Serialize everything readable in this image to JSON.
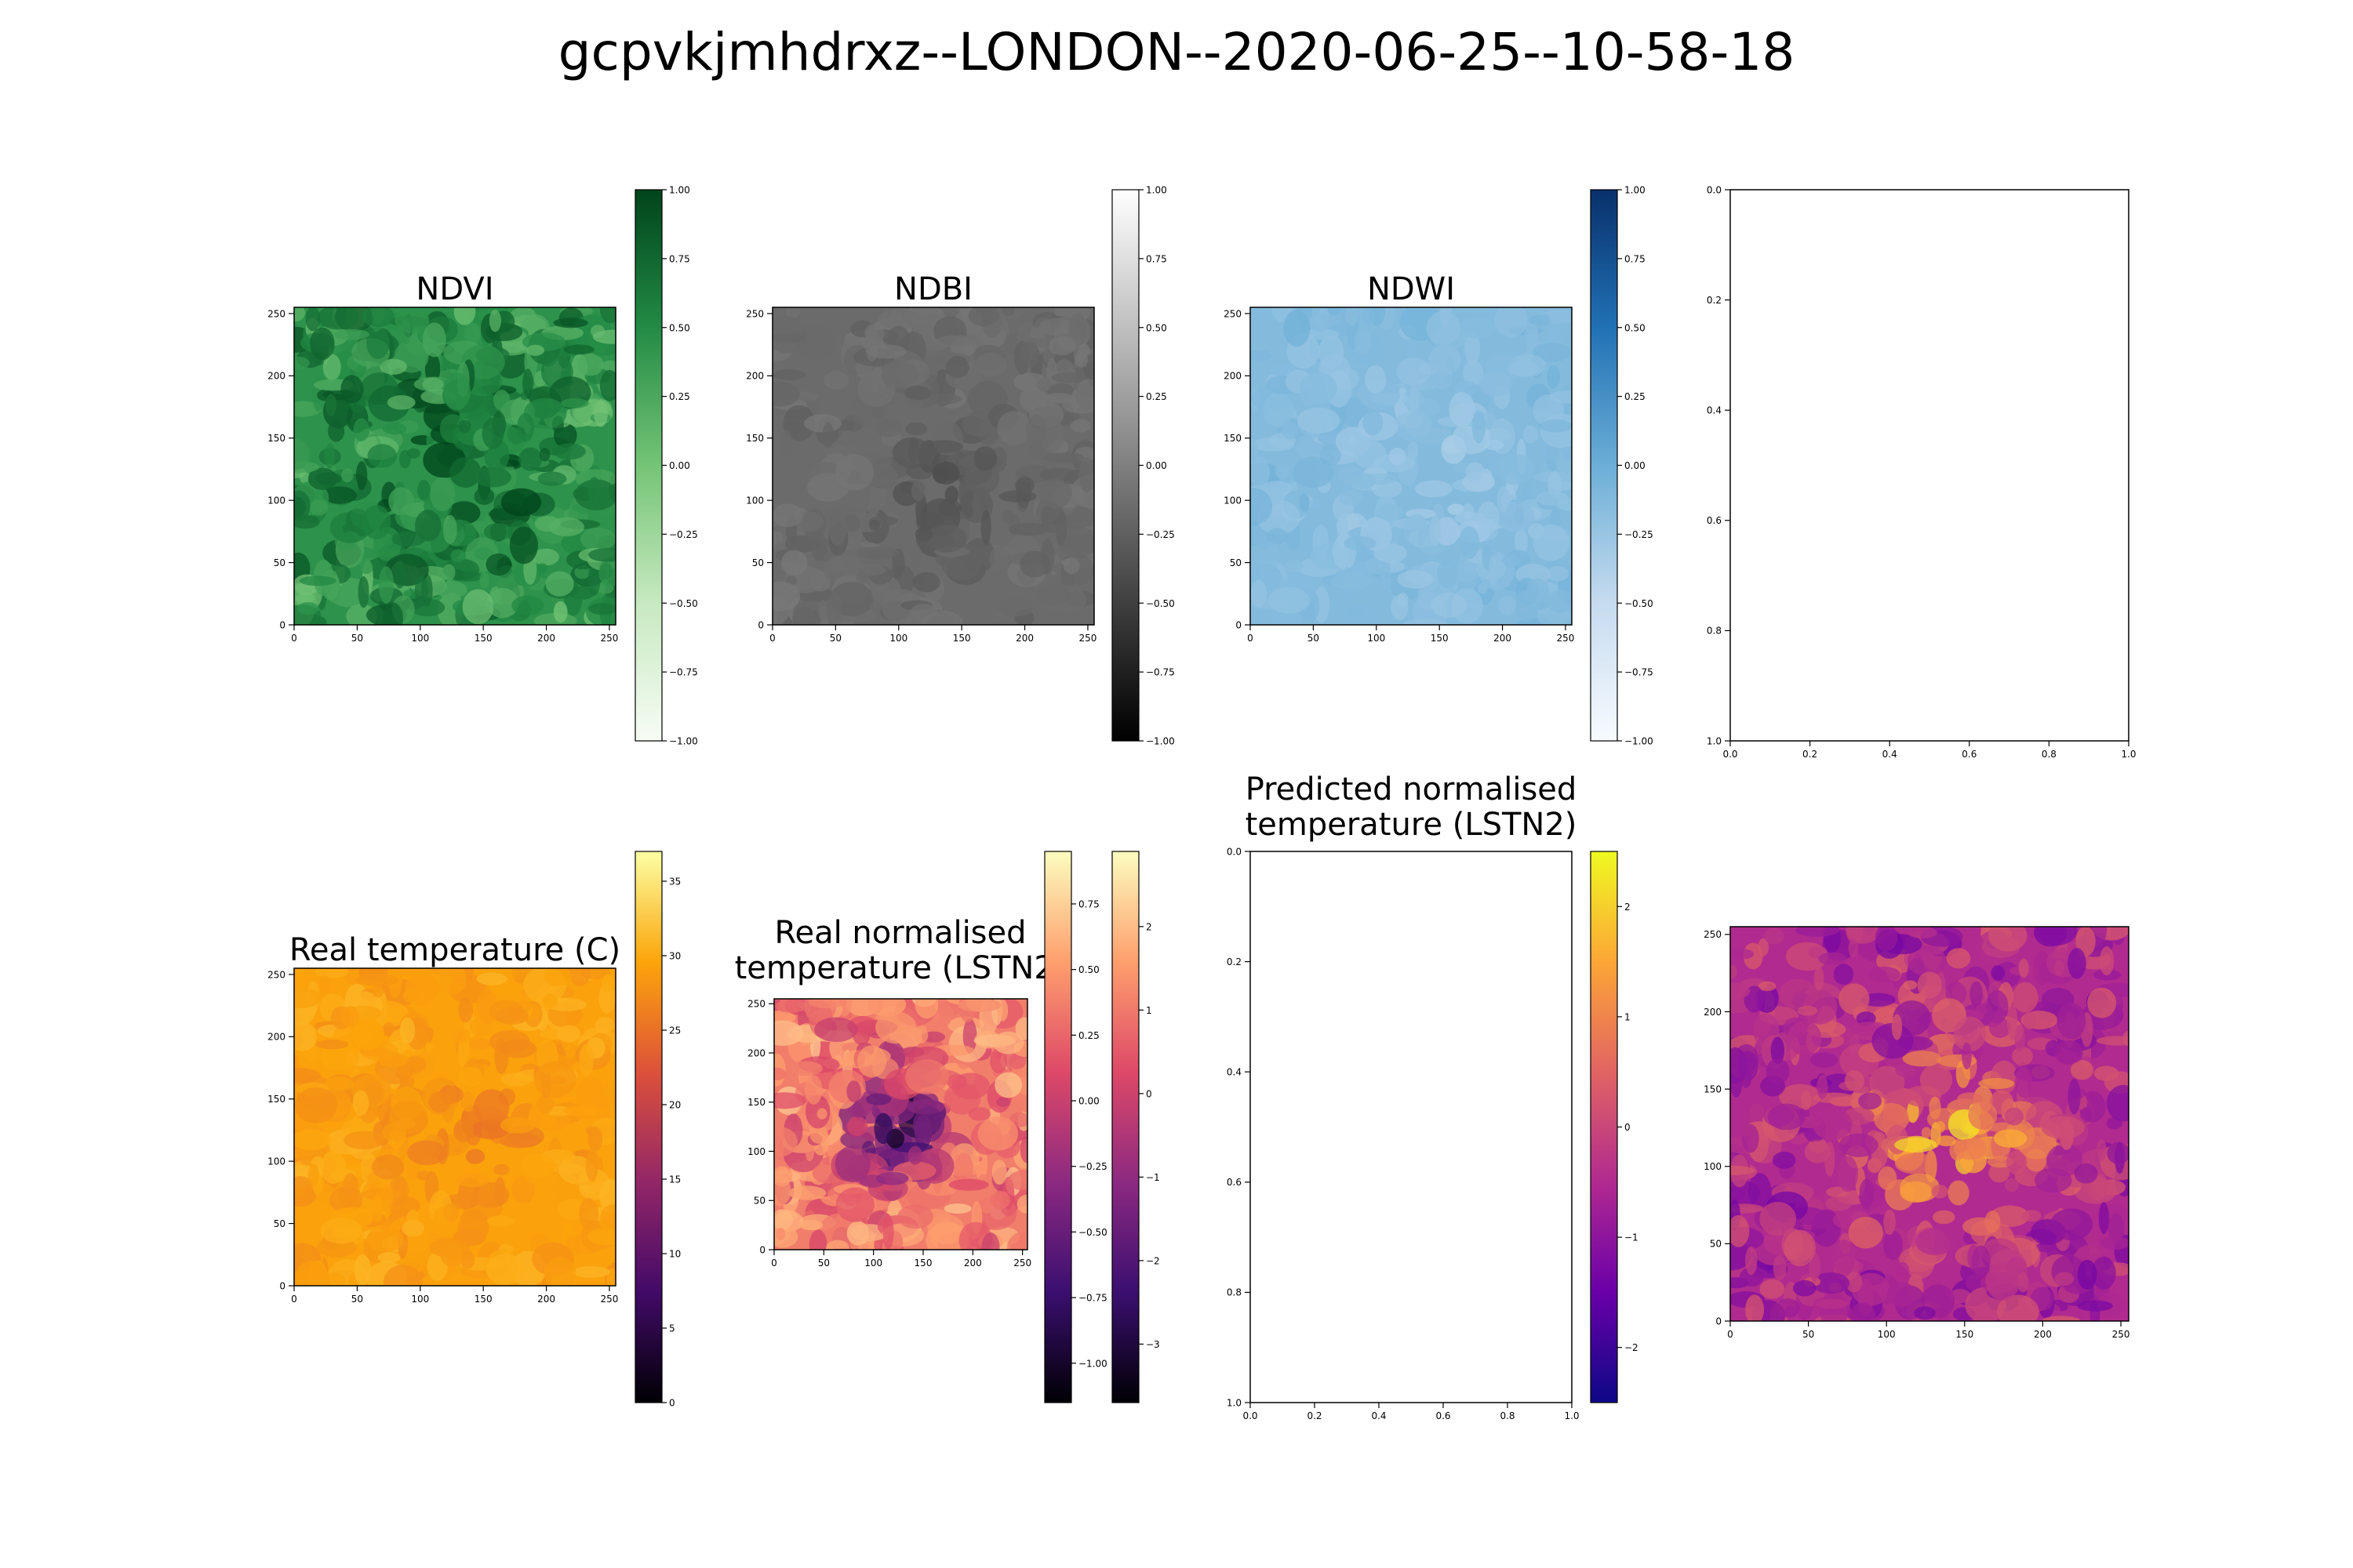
{
  "figure": {
    "suptitle": "gcpvkjmhdrxz--LONDON--2020-06-25--10-58-18"
  },
  "colors": {
    "ndvi": [
      "#f7fcf5",
      "#c7e9c0",
      "#74c476",
      "#238b45",
      "#00441b"
    ],
    "ndbi": [
      "#000000",
      "#ffffff"
    ],
    "ndwi": [
      "#f7fbff",
      "#c6dbef",
      "#6baed6",
      "#2171b5",
      "#08306b"
    ],
    "inferno_like": [
      "#000004",
      "#420a68",
      "#932667",
      "#dd513a",
      "#fca50a",
      "#fcffa4"
    ],
    "magma_like": [
      "#000004",
      "#3b0f70",
      "#8c2981",
      "#de4968",
      "#fe9f6d",
      "#fcfdbf"
    ],
    "plasma_like": [
      "#0d0887",
      "#6a00a8",
      "#b12a90",
      "#e16462",
      "#fca636",
      "#f0f921"
    ]
  },
  "chart_data": [
    {
      "type": "heatmap",
      "title": "NDVI",
      "xlim": [
        0,
        255
      ],
      "ylim": [
        255,
        0
      ],
      "xticks": [
        0,
        50,
        100,
        150,
        200,
        250
      ],
      "yticks": [
        0,
        50,
        100,
        150,
        200,
        250
      ],
      "colorbar": {
        "cmap": "ndvi",
        "range": [
          -1.0,
          1.0
        ],
        "ticks": [
          "1.00",
          "0.75",
          "0.50",
          "0.25",
          "0.00",
          "−0.25",
          "−0.50",
          "−0.75",
          "−1.00"
        ]
      }
    },
    {
      "type": "heatmap",
      "title": "NDBI",
      "xlim": [
        0,
        255
      ],
      "ylim": [
        255,
        0
      ],
      "xticks": [
        0,
        50,
        100,
        150,
        200,
        250
      ],
      "yticks": [
        0,
        50,
        100,
        150,
        200,
        250
      ],
      "colorbar": {
        "cmap": "ndbi",
        "range": [
          -1.0,
          1.0
        ],
        "ticks": [
          "1.00",
          "0.75",
          "0.50",
          "0.25",
          "0.00",
          "−0.25",
          "−0.50",
          "−0.75",
          "−1.00"
        ]
      }
    },
    {
      "type": "heatmap",
      "title": "NDWI",
      "xlim": [
        0,
        255
      ],
      "ylim": [
        255,
        0
      ],
      "xticks": [
        0,
        50,
        100,
        150,
        200,
        250
      ],
      "yticks": [
        0,
        50,
        100,
        150,
        200,
        250
      ],
      "colorbar": {
        "cmap": "ndwi",
        "range": [
          -1.0,
          1.0
        ],
        "ticks": [
          "1.00",
          "0.75",
          "0.50",
          "0.25",
          "0.00",
          "−0.25",
          "−0.50",
          "−0.75",
          "−1.00"
        ]
      }
    },
    {
      "type": "scatter",
      "title": "",
      "xlim": [
        0.0,
        1.0
      ],
      "ylim": [
        0.0,
        1.0
      ],
      "xticks": [
        "0.0",
        "0.2",
        "0.4",
        "0.6",
        "0.8",
        "1.0"
      ],
      "yticks": [
        "0.0",
        "0.2",
        "0.4",
        "0.6",
        "0.8",
        "1.0"
      ],
      "series": []
    },
    {
      "type": "heatmap",
      "title": "Real temperature (C)",
      "xlim": [
        0,
        255
      ],
      "ylim": [
        255,
        0
      ],
      "xticks": [
        0,
        50,
        100,
        150,
        200,
        250
      ],
      "yticks": [
        0,
        50,
        100,
        150,
        200,
        250
      ],
      "colorbar": {
        "cmap": "inferno_like",
        "range": [
          0,
          37
        ],
        "ticks": [
          "35",
          "30",
          "25",
          "20",
          "15",
          "10",
          "5",
          "0"
        ]
      }
    },
    {
      "type": "heatmap",
      "title": "Real normalised temperature (LSTN2)",
      "xlim": [
        0,
        255
      ],
      "ylim": [
        255,
        0
      ],
      "xticks": [
        0,
        50,
        100,
        150,
        200,
        250
      ],
      "yticks": [
        0,
        50,
        100,
        150,
        200,
        250
      ],
      "colorbar": {
        "cmap": "magma_like",
        "range": [
          -1.15,
          0.95
        ],
        "ticks": [
          "0.75",
          "0.50",
          "0.25",
          "0.00",
          "−0.25",
          "−0.50",
          "−0.75",
          "−1.00"
        ]
      },
      "colorbar2": {
        "cmap": "magma_like",
        "range": [
          -3.7,
          2.9
        ],
        "ticks": [
          "2",
          "1",
          "0",
          "−1",
          "−2",
          "−3"
        ]
      }
    },
    {
      "type": "scatter",
      "title": "Predicted normalised temperature (LSTN2)",
      "xlim": [
        0.0,
        1.0
      ],
      "ylim": [
        0.0,
        1.0
      ],
      "xticks": [
        "0.0",
        "0.2",
        "0.4",
        "0.6",
        "0.8",
        "1.0"
      ],
      "yticks": [
        "0.0",
        "0.2",
        "0.4",
        "0.6",
        "0.8",
        "1.0"
      ],
      "series": [],
      "colorbar": {
        "cmap": "plasma_like",
        "range": [
          -2.5,
          2.5
        ],
        "ticks": [
          "2",
          "1",
          "0",
          "−1",
          "−2"
        ]
      }
    },
    {
      "type": "heatmap",
      "title": "",
      "xlim": [
        0,
        255
      ],
      "ylim": [
        255,
        0
      ],
      "xticks": [
        0,
        50,
        100,
        150,
        200,
        250
      ],
      "yticks": [
        0,
        50,
        100,
        150,
        200,
        250
      ]
    }
  ]
}
